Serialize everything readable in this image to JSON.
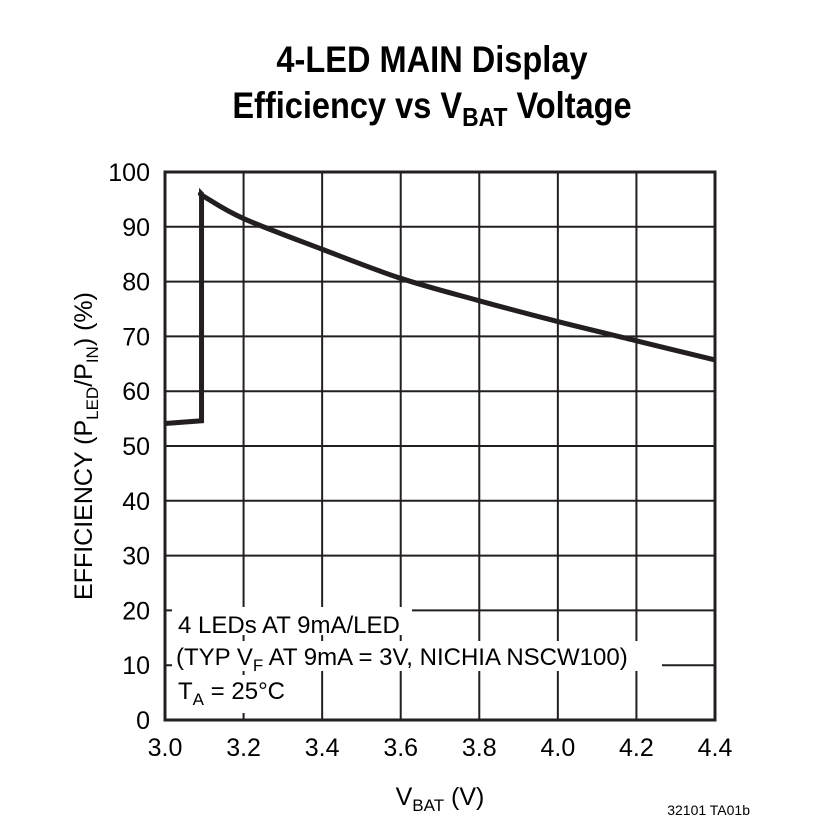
{
  "chart_data": {
    "type": "line",
    "title_line1": "4-LED MAIN Display",
    "title_line2_prefix": "Efficiency vs V",
    "title_line2_sub": "BAT",
    "title_line2_suffix": " Voltage",
    "xlabel_main": "V",
    "xlabel_sub": "BAT",
    "xlabel_suffix": " (V)",
    "ylabel_prefix": "EFFICIENCY (P",
    "ylabel_sub1": "LED",
    "ylabel_mid": "/P",
    "ylabel_sub2": "IN",
    "ylabel_suffix": ") (%)",
    "xlim": [
      3.0,
      4.4
    ],
    "ylim": [
      0,
      100
    ],
    "xticks": [
      "3.0",
      "3.2",
      "3.4",
      "3.6",
      "3.8",
      "4.0",
      "4.2",
      "4.4"
    ],
    "yticks": [
      "0",
      "10",
      "20",
      "30",
      "40",
      "50",
      "60",
      "70",
      "80",
      "90",
      "100"
    ],
    "grid": true,
    "series": [
      {
        "x": [
          3.0,
          3.093,
          3.093,
          3.1,
          3.2,
          3.4,
          3.6,
          3.8,
          4.0,
          4.2,
          4.4
        ],
        "y": [
          54.1,
          54.6,
          96.0,
          95.5,
          91.5,
          85.9,
          80.6,
          76.5,
          72.7,
          69.2,
          65.7
        ],
        "color": "#231f20"
      }
    ],
    "annotations": {
      "line1": "4 LEDs AT 9mA/LED",
      "line2_a": "(TYP V",
      "line2_sub": "F",
      "line2_b": " AT 9mA = 3V, NICHIA NSCW100)",
      "line3_a": "T",
      "line3_sub": "A",
      "line3_b": " = 25°C"
    },
    "figure_code": "32101 TA01b"
  }
}
